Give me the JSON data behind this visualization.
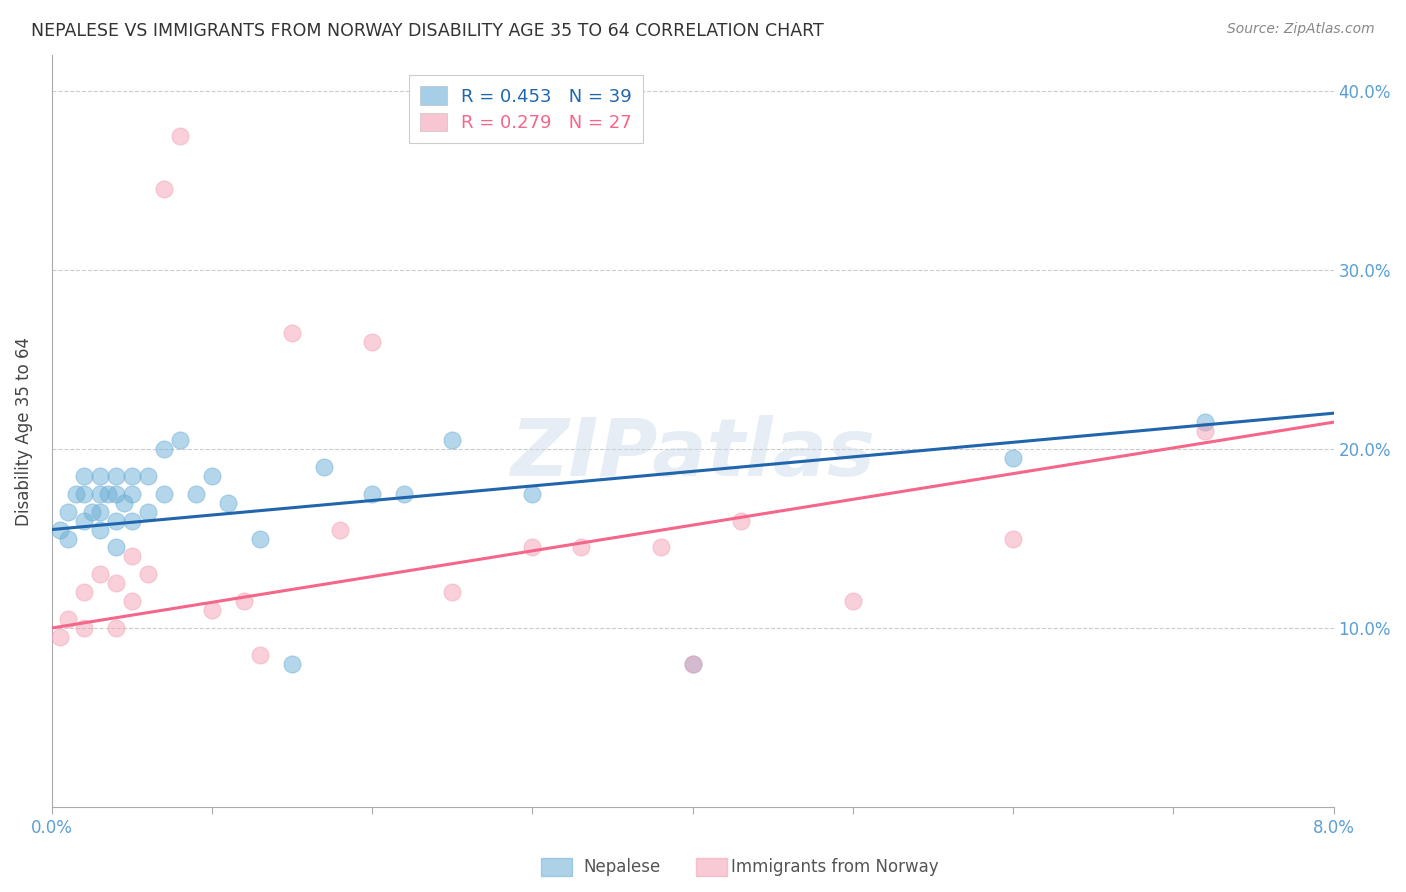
{
  "title": "NEPALESE VS IMMIGRANTS FROM NORWAY DISABILITY AGE 35 TO 64 CORRELATION CHART",
  "source": "Source: ZipAtlas.com",
  "ylabel": "Disability Age 35 to 64",
  "xlim": [
    0.0,
    0.08
  ],
  "ylim": [
    0.0,
    0.42
  ],
  "xticks": [
    0.0,
    0.01,
    0.02,
    0.03,
    0.04,
    0.05,
    0.06,
    0.07,
    0.08
  ],
  "ytick_positions": [
    0.1,
    0.2,
    0.3,
    0.4
  ],
  "yticklabels": [
    "10.0%",
    "20.0%",
    "30.0%",
    "40.0%"
  ],
  "legend_entries": [
    {
      "label": "R = 0.453   N = 39",
      "color": "#a8c8f0"
    },
    {
      "label": "R = 0.279   N = 27",
      "color": "#f0a8b8"
    }
  ],
  "nepalese_x": [
    0.0005,
    0.001,
    0.001,
    0.0015,
    0.002,
    0.002,
    0.002,
    0.0025,
    0.003,
    0.003,
    0.003,
    0.003,
    0.0035,
    0.004,
    0.004,
    0.004,
    0.004,
    0.0045,
    0.005,
    0.005,
    0.005,
    0.006,
    0.006,
    0.007,
    0.007,
    0.008,
    0.009,
    0.01,
    0.011,
    0.013,
    0.015,
    0.017,
    0.02,
    0.022,
    0.025,
    0.03,
    0.04,
    0.06,
    0.072
  ],
  "nepalese_y": [
    0.155,
    0.165,
    0.15,
    0.175,
    0.185,
    0.175,
    0.16,
    0.165,
    0.185,
    0.175,
    0.165,
    0.155,
    0.175,
    0.185,
    0.175,
    0.16,
    0.145,
    0.17,
    0.185,
    0.175,
    0.16,
    0.185,
    0.165,
    0.2,
    0.175,
    0.205,
    0.175,
    0.185,
    0.17,
    0.15,
    0.08,
    0.19,
    0.175,
    0.175,
    0.205,
    0.175,
    0.08,
    0.195,
    0.215
  ],
  "norway_x": [
    0.0005,
    0.001,
    0.002,
    0.002,
    0.003,
    0.004,
    0.004,
    0.005,
    0.005,
    0.006,
    0.007,
    0.008,
    0.01,
    0.012,
    0.013,
    0.015,
    0.018,
    0.02,
    0.025,
    0.03,
    0.033,
    0.038,
    0.04,
    0.043,
    0.05,
    0.06,
    0.072
  ],
  "norway_y": [
    0.095,
    0.105,
    0.12,
    0.1,
    0.13,
    0.125,
    0.1,
    0.14,
    0.115,
    0.13,
    0.345,
    0.375,
    0.11,
    0.115,
    0.085,
    0.265,
    0.155,
    0.26,
    0.12,
    0.145,
    0.145,
    0.145,
    0.08,
    0.16,
    0.115,
    0.15,
    0.21
  ],
  "blue_color": "#6baed6",
  "pink_color": "#f4a0b5",
  "blue_line_color": "#2166ac",
  "pink_line_color": "#f4668a",
  "watermark": "ZIPatlas",
  "background_color": "#ffffff",
  "grid_color": "#cccccc",
  "blue_line_x0": 0.0,
  "blue_line_x1": 0.08,
  "blue_line_y0": 0.155,
  "blue_line_y1": 0.22,
  "pink_line_x0": 0.0,
  "pink_line_x1": 0.08,
  "pink_line_y0": 0.1,
  "pink_line_y1": 0.215
}
